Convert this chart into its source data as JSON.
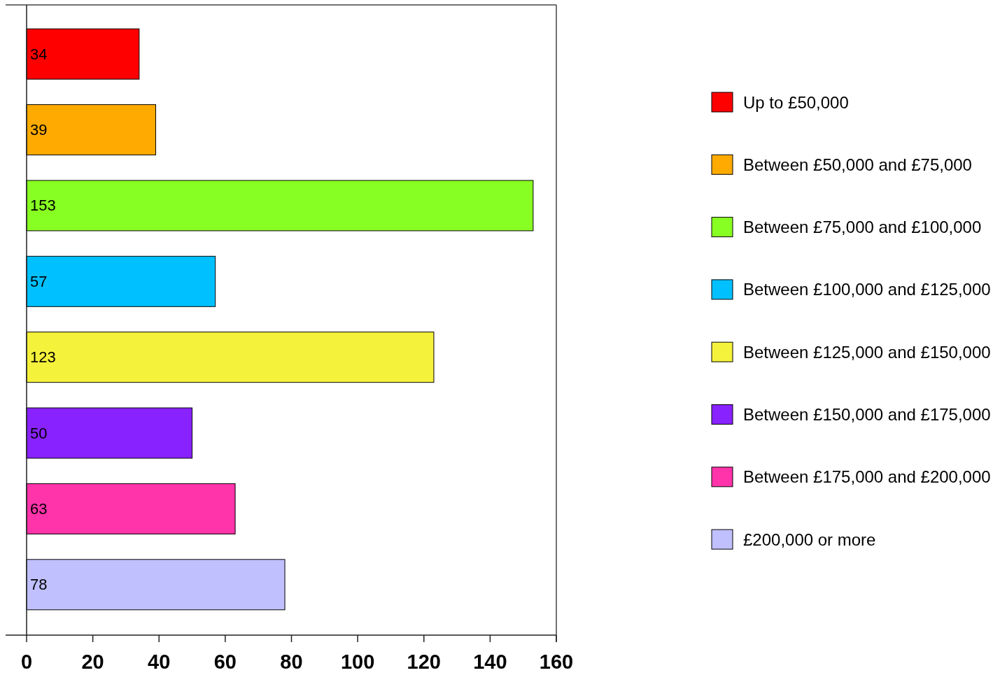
{
  "chart_data": {
    "type": "bar",
    "orientation": "horizontal",
    "stacked": true,
    "categories": [
      null,
      null,
      null,
      null,
      null,
      null,
      null,
      null
    ],
    "series": [
      {
        "name": "Up to £50,000",
        "color": "#ff0000",
        "values": [
          34,
          null,
          null,
          null,
          null,
          null,
          null,
          null
        ]
      },
      {
        "name": "Between £50,000 and £75,000",
        "color": "#ffaa00",
        "values": [
          null,
          39,
          null,
          null,
          null,
          null,
          null,
          null
        ]
      },
      {
        "name": "Between £75,000 and £100,000",
        "color": "#88ff22",
        "values": [
          null,
          null,
          153,
          null,
          null,
          null,
          null,
          null
        ]
      },
      {
        "name": "Between £100,000 and £125,000",
        "color": "#00c0ff",
        "values": [
          null,
          null,
          null,
          57,
          null,
          null,
          null,
          null
        ]
      },
      {
        "name": "Between £125,000 and £150,000",
        "color": "#f5f23c",
        "values": [
          null,
          null,
          null,
          null,
          123,
          null,
          null,
          null
        ]
      },
      {
        "name": "Between £150,000 and £175,000",
        "color": "#8822ff",
        "values": [
          null,
          null,
          null,
          null,
          null,
          50,
          null,
          null
        ]
      },
      {
        "name": "Between £175,000 and £200,000",
        "color": "#ff33aa",
        "values": [
          null,
          null,
          null,
          null,
          null,
          null,
          63,
          null
        ]
      },
      {
        "name": "£200,000 or more",
        "color": "#c0c0ff",
        "values": [
          null,
          null,
          null,
          null,
          null,
          null,
          null,
          78
        ]
      }
    ],
    "xlim": [
      0,
      160
    ],
    "xticks": [
      0,
      20,
      40,
      60,
      80,
      100,
      120,
      140,
      160
    ],
    "data_labels": true,
    "legend": "right",
    "tick_labels": "x"
  }
}
